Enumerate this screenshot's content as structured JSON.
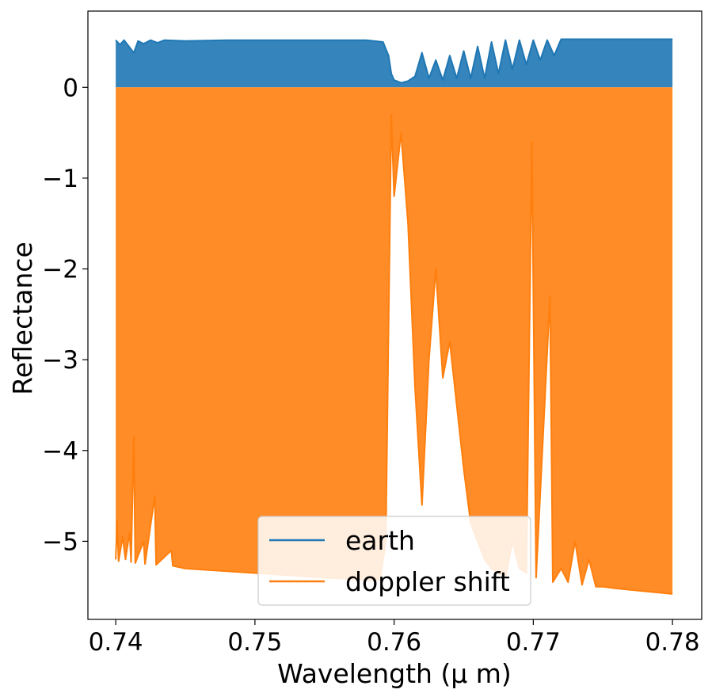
{
  "chart_data": {
    "type": "line",
    "title": "",
    "xlabel": "Wavelength (μ m)",
    "ylabel": "Reflectance",
    "xlim": [
      0.738,
      0.7821
    ],
    "ylim": [
      -5.86,
      0.84
    ],
    "xticks": [
      0.74,
      0.75,
      0.76,
      0.77,
      0.78
    ],
    "xtick_labels": [
      "0.74",
      "0.75",
      "0.76",
      "0.77",
      "0.78"
    ],
    "yticks": [
      0,
      -1,
      -2,
      -3,
      -4,
      -5
    ],
    "ytick_labels": [
      "0",
      "−1",
      "−2",
      "−3",
      "−4",
      "−5"
    ],
    "grid": false,
    "legend_position": "lower center",
    "series": [
      {
        "name": "earth",
        "color": "#1f77b4",
        "fill_to_zero": true,
        "points": [
          [
            0.74,
            0.52
          ],
          [
            0.7403,
            0.47
          ],
          [
            0.7406,
            0.52
          ],
          [
            0.741,
            0.44
          ],
          [
            0.7413,
            0.38
          ],
          [
            0.7416,
            0.51
          ],
          [
            0.742,
            0.48
          ],
          [
            0.7425,
            0.52
          ],
          [
            0.743,
            0.49
          ],
          [
            0.7435,
            0.52
          ],
          [
            0.745,
            0.51
          ],
          [
            0.748,
            0.52
          ],
          [
            0.75,
            0.52
          ],
          [
            0.755,
            0.52
          ],
          [
            0.758,
            0.52
          ],
          [
            0.7592,
            0.5
          ],
          [
            0.7596,
            0.35
          ],
          [
            0.7598,
            0.15
          ],
          [
            0.76,
            0.08
          ],
          [
            0.7605,
            0.05
          ],
          [
            0.761,
            0.07
          ],
          [
            0.7615,
            0.12
          ],
          [
            0.762,
            0.38
          ],
          [
            0.7625,
            0.1
          ],
          [
            0.763,
            0.3
          ],
          [
            0.7635,
            0.08
          ],
          [
            0.764,
            0.35
          ],
          [
            0.7645,
            0.1
          ],
          [
            0.765,
            0.4
          ],
          [
            0.7655,
            0.1
          ],
          [
            0.766,
            0.45
          ],
          [
            0.7665,
            0.1
          ],
          [
            0.767,
            0.5
          ],
          [
            0.7675,
            0.15
          ],
          [
            0.768,
            0.52
          ],
          [
            0.7685,
            0.2
          ],
          [
            0.769,
            0.52
          ],
          [
            0.7695,
            0.25
          ],
          [
            0.77,
            0.52
          ],
          [
            0.7705,
            0.3
          ],
          [
            0.771,
            0.52
          ],
          [
            0.7715,
            0.35
          ],
          [
            0.772,
            0.53
          ],
          [
            0.775,
            0.53
          ],
          [
            0.778,
            0.53
          ],
          [
            0.78,
            0.53
          ]
        ]
      },
      {
        "name": "doppler shift",
        "color": "#ff7f0e",
        "fill_to_zero": true,
        "points": [
          [
            0.74,
            -5.2
          ],
          [
            0.7401,
            -4.78
          ],
          [
            0.7402,
            -5.22
          ],
          [
            0.7405,
            -4.95
          ],
          [
            0.7407,
            -5.2
          ],
          [
            0.741,
            -4.9
          ],
          [
            0.7411,
            -5.23
          ],
          [
            0.7413,
            -3.85
          ],
          [
            0.7414,
            -5.24
          ],
          [
            0.742,
            -5.0
          ],
          [
            0.7421,
            -5.25
          ],
          [
            0.7428,
            -4.5
          ],
          [
            0.7429,
            -5.26
          ],
          [
            0.744,
            -5.1
          ],
          [
            0.7441,
            -5.27
          ],
          [
            0.745,
            -5.3
          ],
          [
            0.75,
            -5.35
          ],
          [
            0.755,
            -5.4
          ],
          [
            0.7585,
            -5.43
          ],
          [
            0.759,
            -5.42
          ],
          [
            0.7594,
            -5.0
          ],
          [
            0.7597,
            -1.5
          ],
          [
            0.7598,
            -0.3
          ],
          [
            0.76,
            -1.2
          ],
          [
            0.7605,
            -0.5
          ],
          [
            0.761,
            -1.5
          ],
          [
            0.7615,
            -3.3
          ],
          [
            0.762,
            -4.6
          ],
          [
            0.7625,
            -3.0
          ],
          [
            0.763,
            -2.0
          ],
          [
            0.7635,
            -3.2
          ],
          [
            0.764,
            -2.8
          ],
          [
            0.7645,
            -3.5
          ],
          [
            0.765,
            -4.2
          ],
          [
            0.7655,
            -4.8
          ],
          [
            0.766,
            -5.0
          ],
          [
            0.7665,
            -5.2
          ],
          [
            0.767,
            -5.3
          ],
          [
            0.7675,
            -5.35
          ],
          [
            0.768,
            -5.4
          ],
          [
            0.7685,
            -5.0
          ],
          [
            0.769,
            -5.3
          ],
          [
            0.7695,
            -5.35
          ],
          [
            0.7699,
            -0.6
          ],
          [
            0.7702,
            -5.4
          ],
          [
            0.7712,
            -2.3
          ],
          [
            0.7714,
            -5.45
          ],
          [
            0.772,
            -5.3
          ],
          [
            0.7725,
            -5.45
          ],
          [
            0.773,
            -5.0
          ],
          [
            0.7735,
            -5.48
          ],
          [
            0.774,
            -5.2
          ],
          [
            0.7745,
            -5.5
          ],
          [
            0.775,
            -5.5
          ],
          [
            0.776,
            -5.52
          ],
          [
            0.778,
            -5.55
          ],
          [
            0.78,
            -5.58
          ]
        ]
      }
    ]
  }
}
